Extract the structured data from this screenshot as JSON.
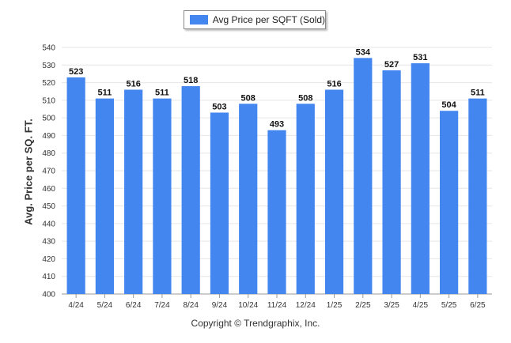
{
  "chart_data": {
    "type": "bar",
    "legend": "Avg Price per SQFT (Sold)",
    "legend_position": "top-center",
    "ylabel": "Avg. Price per SQ. FT.",
    "xlabel": "",
    "ylim": [
      400,
      540
    ],
    "ytick_step": 10,
    "grid": true,
    "bar_color": "#4486f0",
    "categories": [
      "4/24",
      "5/24",
      "6/24",
      "7/24",
      "8/24",
      "9/24",
      "10/24",
      "11/24",
      "12/24",
      "1/25",
      "2/25",
      "3/25",
      "4/25",
      "5/25",
      "6/25"
    ],
    "values": [
      523,
      511,
      516,
      511,
      518,
      503,
      508,
      493,
      508,
      516,
      534,
      527,
      531,
      504,
      511
    ]
  },
  "footer": {
    "copyright": "Copyright © Trendgraphix, Inc."
  }
}
